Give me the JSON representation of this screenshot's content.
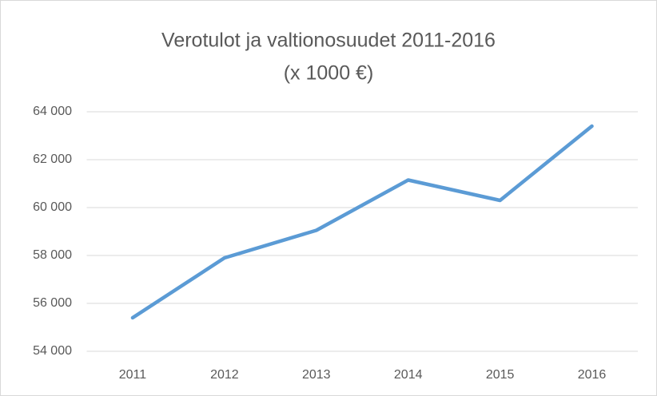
{
  "chart_data": {
    "type": "line",
    "title": "Verotulot ja valtionosuudet 2011-2016",
    "subtitle": "(x 1000 €)",
    "categories": [
      "2011",
      "2012",
      "2013",
      "2014",
      "2015",
      "2016"
    ],
    "series": [
      {
        "name": "Verotulot ja valtionosuudet",
        "color": "#5b9bd5",
        "values": [
          55400,
          57900,
          59050,
          61150,
          60300,
          63400
        ]
      }
    ],
    "ylim": [
      54000,
      64000
    ],
    "yticks": [
      {
        "value": 54000,
        "label": "54 000"
      },
      {
        "value": 56000,
        "label": "56 000"
      },
      {
        "value": 58000,
        "label": "58 000"
      },
      {
        "value": 60000,
        "label": "60 000"
      },
      {
        "value": 62000,
        "label": "62 000"
      },
      {
        "value": 64000,
        "label": "64 000"
      }
    ],
    "grid": true
  }
}
